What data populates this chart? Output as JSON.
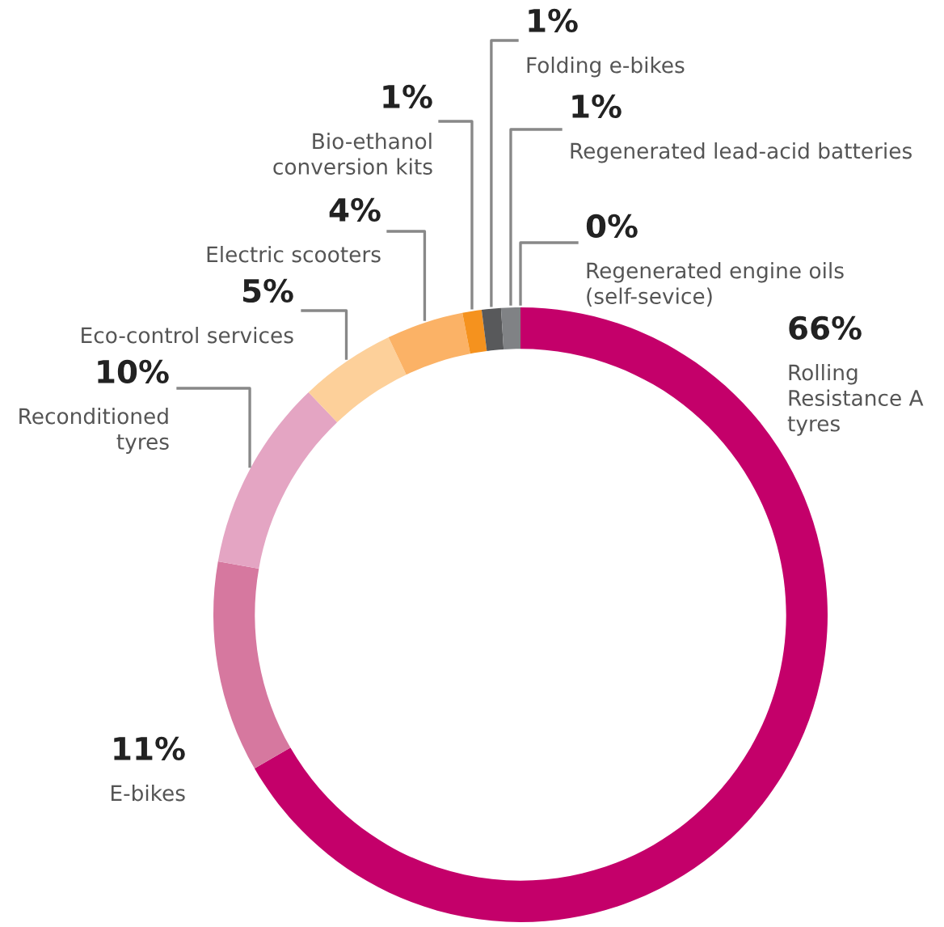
{
  "chart_data": {
    "type": "donut",
    "categories": [
      "Rolling\nResistance A\ntyres",
      "E-bikes",
      "Reconditioned\ntyres",
      "Eco-control services",
      "Electric scooters",
      "Bio-ethanol\nconversion kits",
      "Folding e-bikes",
      "Regenerated lead-acid batteries",
      "Regenerated engine oils\n(self-sevice)"
    ],
    "values": [
      66,
      11,
      10,
      5,
      4,
      1,
      1,
      1,
      0
    ],
    "colors": [
      "#c4006a",
      "#d6789f",
      "#e4a5c3",
      "#fdd09a",
      "#fbb266",
      "#f5921e",
      "#58595b",
      "#808285",
      "#a7a9ac"
    ],
    "value_labels": [
      "66%",
      "11%",
      "10%",
      "5%",
      "4%",
      "1%",
      "1%",
      "1%",
      "0%"
    ]
  }
}
